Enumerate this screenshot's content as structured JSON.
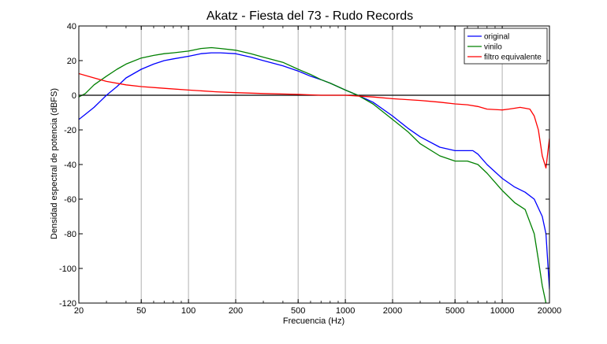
{
  "chart_data": {
    "type": "line",
    "title": "Akatz - Fiesta del 73 - Rudo Records",
    "xlabel": "Frecuencia (Hz)",
    "ylabel": "Densidad espectral de potencia (dBFS)",
    "xscale": "log",
    "xlim": [
      20,
      20000
    ],
    "ylim": [
      -120,
      40
    ],
    "xticks": [
      20,
      50,
      100,
      200,
      500,
      1000,
      2000,
      5000,
      10000,
      20000
    ],
    "xtick_labels": [
      "20",
      "50",
      "100",
      "200",
      "500",
      "1000",
      "2000",
      "5000",
      "10000",
      "20000"
    ],
    "yticks": [
      40,
      20,
      0,
      -20,
      -40,
      -60,
      -80,
      -100,
      -120
    ],
    "ytick_labels": [
      "40",
      "20",
      "0",
      "-20",
      "-40",
      "-60",
      "-80",
      "-100",
      "-120"
    ],
    "grid": "vertical",
    "legend_position": "top-right",
    "reference_line": 0,
    "series": [
      {
        "name": "original",
        "color": "#0000ff",
        "x": [
          20,
          22,
          25,
          30,
          35,
          40,
          50,
          60,
          70,
          80,
          100,
          120,
          140,
          160,
          200,
          250,
          300,
          400,
          500,
          600,
          700,
          800,
          1000,
          1200,
          1500,
          2000,
          2500,
          3000,
          4000,
          5000,
          6000,
          6500,
          7000,
          8000,
          10000,
          12000,
          14000,
          16000,
          18000,
          19000,
          20000
        ],
        "y": [
          -14,
          -11,
          -7,
          0,
          5,
          10,
          15,
          18,
          20,
          21,
          22.5,
          24,
          24.5,
          24.5,
          24,
          22,
          20,
          17,
          14,
          11,
          9,
          7,
          3,
          0,
          -4,
          -12,
          -19,
          -24,
          -30,
          -32,
          -32,
          -32,
          -34,
          -40,
          -48,
          -53,
          -56,
          -60,
          -70,
          -80,
          -112
        ]
      },
      {
        "name": "vinilo",
        "color": "#008000",
        "x": [
          20,
          22,
          25,
          30,
          35,
          40,
          50,
          60,
          70,
          80,
          100,
          120,
          140,
          160,
          200,
          250,
          300,
          400,
          500,
          600,
          700,
          800,
          1000,
          1200,
          1500,
          2000,
          2500,
          3000,
          4000,
          5000,
          6000,
          7000,
          8000,
          10000,
          12000,
          14000,
          16000,
          17000,
          18000,
          19000
        ],
        "y": [
          -1,
          1,
          6,
          11,
          15,
          18,
          21.5,
          23,
          24,
          24.5,
          25.5,
          27,
          27.5,
          27,
          26,
          24,
          22,
          19,
          15,
          12,
          9,
          7,
          3,
          0,
          -5,
          -14,
          -21,
          -28,
          -35,
          -38,
          -38,
          -40,
          -45,
          -55,
          -62,
          -66,
          -80,
          -95,
          -110,
          -120
        ]
      },
      {
        "name": "filtro equivalente",
        "color": "#ff0000",
        "x": [
          20,
          25,
          30,
          40,
          50,
          70,
          100,
          150,
          200,
          300,
          500,
          700,
          1000,
          1500,
          2000,
          3000,
          4000,
          5000,
          6000,
          7000,
          8000,
          10000,
          11000,
          12000,
          13000,
          14000,
          15000,
          16000,
          17000,
          18000,
          19000,
          20000
        ],
        "y": [
          12.5,
          10,
          8,
          6,
          5,
          4,
          3,
          2,
          1.5,
          1,
          0.5,
          0,
          0,
          -1,
          -2,
          -3,
          -4,
          -5,
          -5.5,
          -6.5,
          -8,
          -8.5,
          -8,
          -7.5,
          -7,
          -7.5,
          -8,
          -12,
          -20,
          -35,
          -42,
          -25
        ]
      }
    ]
  }
}
